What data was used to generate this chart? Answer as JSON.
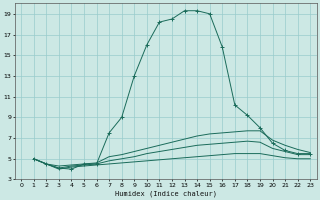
{
  "title": "",
  "xlabel": "Humidex (Indice chaleur)",
  "bg_color": "#cce8e4",
  "grid_color": "#99cccc",
  "line_color": "#1a6b5a",
  "xlim": [
    -0.5,
    23.5
  ],
  "ylim": [
    3,
    20
  ],
  "xticks": [
    0,
    1,
    2,
    3,
    4,
    5,
    6,
    7,
    8,
    9,
    10,
    11,
    12,
    13,
    14,
    15,
    16,
    17,
    18,
    19,
    20,
    21,
    22,
    23
  ],
  "yticks": [
    3,
    5,
    7,
    9,
    11,
    13,
    15,
    17,
    19
  ],
  "curves": [
    {
      "x": [
        1,
        2,
        3,
        4,
        5,
        6,
        7,
        8,
        9,
        10,
        11,
        12,
        13,
        14,
        15,
        16,
        17,
        18,
        19,
        20,
        21,
        22,
        23
      ],
      "y": [
        5,
        4.5,
        4.1,
        4.0,
        4.5,
        4.5,
        7.5,
        9,
        13,
        16,
        18.2,
        18.5,
        19.3,
        19.3,
        19.0,
        15.8,
        10.2,
        9.2,
        8.0,
        6.5,
        5.8,
        5.5,
        5.5
      ],
      "marker": "+"
    },
    {
      "x": [
        1,
        2,
        3,
        4,
        5,
        6,
        7,
        8,
        9,
        10,
        11,
        12,
        13,
        14,
        15,
        16,
        17,
        18,
        19,
        20,
        21,
        22,
        23
      ],
      "y": [
        5,
        4.5,
        4.3,
        4.4,
        4.5,
        4.6,
        5.2,
        5.4,
        5.7,
        6.0,
        6.3,
        6.6,
        6.9,
        7.2,
        7.4,
        7.5,
        7.6,
        7.7,
        7.7,
        6.8,
        6.3,
        5.9,
        5.6
      ],
      "marker": null
    },
    {
      "x": [
        1,
        2,
        3,
        4,
        5,
        6,
        7,
        8,
        9,
        10,
        11,
        12,
        13,
        14,
        15,
        16,
        17,
        18,
        19,
        20,
        21,
        22,
        23
      ],
      "y": [
        5,
        4.5,
        4.1,
        4.3,
        4.4,
        4.5,
        4.8,
        5.0,
        5.2,
        5.5,
        5.7,
        5.9,
        6.1,
        6.3,
        6.4,
        6.5,
        6.6,
        6.7,
        6.6,
        6.0,
        5.7,
        5.4,
        5.4
      ],
      "marker": null
    },
    {
      "x": [
        1,
        2,
        3,
        4,
        5,
        6,
        7,
        8,
        9,
        10,
        11,
        12,
        13,
        14,
        15,
        16,
        17,
        18,
        19,
        20,
        21,
        22,
        23
      ],
      "y": [
        5,
        4.5,
        4.0,
        4.2,
        4.3,
        4.4,
        4.5,
        4.6,
        4.7,
        4.8,
        4.9,
        5.0,
        5.1,
        5.2,
        5.3,
        5.4,
        5.5,
        5.5,
        5.5,
        5.3,
        5.1,
        5.0,
        5.0
      ],
      "marker": null
    }
  ]
}
